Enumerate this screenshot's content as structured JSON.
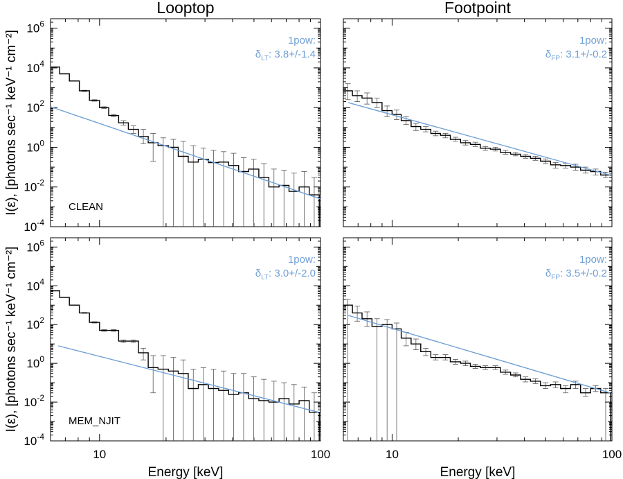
{
  "chart_data": [
    {
      "id": "lt_clean",
      "type": "step",
      "column_title": "Looptop",
      "ylabel": "I(ε), [photons sec⁻¹ keV⁻¹ cm⁻²]",
      "xlabel": "",
      "xscale": "log",
      "yscale": "log",
      "xlim": [
        6,
        100
      ],
      "ylim": [
        0.0001,
        3000000
      ],
      "series_label": "CLEAN",
      "fit_label": "1pow:",
      "delta_symbol": "δ",
      "delta_sub": "LT",
      "delta_value": ": 3.8+/-1.4",
      "fit": {
        "x": [
          6,
          100
        ],
        "y": [
          110,
          0.0025
        ]
      },
      "bins": [
        {
          "x0": 6.0,
          "x1": 6.6,
          "y": 11000,
          "lo": 11000,
          "hi": 11000
        },
        {
          "x0": 6.6,
          "x1": 7.3,
          "y": 5000,
          "lo": 5000,
          "hi": 5000
        },
        {
          "x0": 7.3,
          "x1": 8.1,
          "y": 2200,
          "lo": 2200,
          "hi": 2200
        },
        {
          "x0": 8.1,
          "x1": 9.0,
          "y": 700,
          "lo": 650,
          "hi": 750
        },
        {
          "x0": 9.0,
          "x1": 10.0,
          "y": 230,
          "lo": 210,
          "hi": 250
        },
        {
          "x0": 10.0,
          "x1": 11.0,
          "y": 100,
          "lo": 90,
          "hi": 110
        },
        {
          "x0": 11.0,
          "x1": 12.2,
          "y": 40,
          "lo": 35,
          "hi": 45
        },
        {
          "x0": 12.2,
          "x1": 13.5,
          "y": 17,
          "lo": 13,
          "hi": 22
        },
        {
          "x0": 13.5,
          "x1": 15.0,
          "y": 8,
          "lo": 5,
          "hi": 12
        },
        {
          "x0": 15.0,
          "x1": 16.6,
          "y": 3.5,
          "lo": 1.5,
          "hi": 8
        },
        {
          "x0": 16.6,
          "x1": 18.4,
          "y": 1.7,
          "lo": 0.2,
          "hi": 5
        },
        {
          "x0": 18.4,
          "x1": 20.5,
          "y": 1.2,
          "lo": 0.0001,
          "hi": 3
        },
        {
          "x0": 20.5,
          "x1": 22.7,
          "y": 1.0,
          "lo": 0.0001,
          "hi": 2.5
        },
        {
          "x0": 22.7,
          "x1": 25.2,
          "y": 0.35,
          "lo": 0.0001,
          "hi": 2
        },
        {
          "x0": 25.2,
          "x1": 28.0,
          "y": 0.18,
          "lo": 0.0001,
          "hi": 1.2
        },
        {
          "x0": 28.0,
          "x1": 31.1,
          "y": 0.25,
          "lo": 0.0001,
          "hi": 0.9
        },
        {
          "x0": 31.1,
          "x1": 34.6,
          "y": 0.17,
          "lo": 0.0001,
          "hi": 0.7
        },
        {
          "x0": 34.6,
          "x1": 38.4,
          "y": 0.18,
          "lo": 0.0001,
          "hi": 0.6
        },
        {
          "x0": 38.4,
          "x1": 42.6,
          "y": 0.12,
          "lo": 0.0001,
          "hi": 0.5
        },
        {
          "x0": 42.6,
          "x1": 47.3,
          "y": 0.06,
          "lo": 0.0001,
          "hi": 0.3
        },
        {
          "x0": 47.3,
          "x1": 52.6,
          "y": 0.08,
          "lo": 0.0001,
          "hi": 0.25
        },
        {
          "x0": 52.6,
          "x1": 58.4,
          "y": 0.03,
          "lo": 0.0001,
          "hi": 0.15
        },
        {
          "x0": 58.4,
          "x1": 64.9,
          "y": 0.01,
          "lo": 0.0001,
          "hi": 0.08
        },
        {
          "x0": 64.9,
          "x1": 72.0,
          "y": 0.012,
          "lo": 0.0001,
          "hi": 0.07
        },
        {
          "x0": 72.0,
          "x1": 80.0,
          "y": 0.006,
          "lo": 0.0001,
          "hi": 0.05
        },
        {
          "x0": 80.0,
          "x1": 88.9,
          "y": 0.01,
          "lo": 0.0001,
          "hi": 0.06
        },
        {
          "x0": 88.9,
          "x1": 98.7,
          "y": 0.004,
          "lo": 0.0001,
          "hi": 0.03
        }
      ]
    },
    {
      "id": "fp_clean",
      "type": "step",
      "column_title": "Footpoint",
      "ylabel": "",
      "xlabel": "",
      "xscale": "log",
      "yscale": "log",
      "xlim": [
        6,
        100
      ],
      "ylim": [
        0.0001,
        3000000
      ],
      "series_label": "",
      "fit_label": "1pow:",
      "delta_symbol": "δ",
      "delta_sub": "FP",
      "delta_value": ": 3.1+/-0.2",
      "fit": {
        "x": [
          6.3,
          98
        ],
        "y": [
          180,
          0.04
        ]
      },
      "bins": [
        {
          "x0": 6.0,
          "x1": 6.6,
          "y": 700,
          "lo": 250,
          "hi": 1600
        },
        {
          "x0": 6.6,
          "x1": 7.3,
          "y": 400,
          "lo": 200,
          "hi": 700
        },
        {
          "x0": 7.3,
          "x1": 8.1,
          "y": 300,
          "lo": 150,
          "hi": 550
        },
        {
          "x0": 8.1,
          "x1": 9.0,
          "y": 180,
          "lo": 100,
          "hi": 300
        },
        {
          "x0": 9.0,
          "x1": 10.0,
          "y": 70,
          "lo": 35,
          "hi": 120
        },
        {
          "x0": 10.0,
          "x1": 11.0,
          "y": 45,
          "lo": 25,
          "hi": 75
        },
        {
          "x0": 11.0,
          "x1": 12.2,
          "y": 22,
          "lo": 14,
          "hi": 35
        },
        {
          "x0": 12.2,
          "x1": 13.5,
          "y": 11,
          "lo": 7,
          "hi": 16
        },
        {
          "x0": 13.5,
          "x1": 15.0,
          "y": 8,
          "lo": 6,
          "hi": 11
        },
        {
          "x0": 15.0,
          "x1": 16.6,
          "y": 5,
          "lo": 3.8,
          "hi": 6.5
        },
        {
          "x0": 16.6,
          "x1": 18.4,
          "y": 4,
          "lo": 3,
          "hi": 5
        },
        {
          "x0": 18.4,
          "x1": 20.5,
          "y": 2.5,
          "lo": 2,
          "hi": 3.2
        },
        {
          "x0": 20.5,
          "x1": 22.7,
          "y": 1.7,
          "lo": 1.3,
          "hi": 2.2
        },
        {
          "x0": 22.7,
          "x1": 25.2,
          "y": 1.4,
          "lo": 1.1,
          "hi": 1.8
        },
        {
          "x0": 25.2,
          "x1": 28.0,
          "y": 0.9,
          "lo": 0.7,
          "hi": 1.1
        },
        {
          "x0": 28.0,
          "x1": 31.1,
          "y": 0.8,
          "lo": 0.65,
          "hi": 1.0
        },
        {
          "x0": 31.1,
          "x1": 34.6,
          "y": 0.55,
          "lo": 0.45,
          "hi": 0.7
        },
        {
          "x0": 34.6,
          "x1": 38.4,
          "y": 0.45,
          "lo": 0.37,
          "hi": 0.55
        },
        {
          "x0": 38.4,
          "x1": 42.6,
          "y": 0.35,
          "lo": 0.28,
          "hi": 0.43
        },
        {
          "x0": 42.6,
          "x1": 47.3,
          "y": 0.28,
          "lo": 0.22,
          "hi": 0.35
        },
        {
          "x0": 47.3,
          "x1": 52.6,
          "y": 0.2,
          "lo": 0.15,
          "hi": 0.26
        },
        {
          "x0": 52.6,
          "x1": 58.4,
          "y": 0.13,
          "lo": 0.09,
          "hi": 0.17
        },
        {
          "x0": 58.4,
          "x1": 64.9,
          "y": 0.12,
          "lo": 0.09,
          "hi": 0.16
        },
        {
          "x0": 64.9,
          "x1": 72.0,
          "y": 0.1,
          "lo": 0.07,
          "hi": 0.14
        },
        {
          "x0": 72.0,
          "x1": 80.0,
          "y": 0.07,
          "lo": 0.05,
          "hi": 0.1
        },
        {
          "x0": 80.0,
          "x1": 88.9,
          "y": 0.06,
          "lo": 0.04,
          "hi": 0.08
        },
        {
          "x0": 88.9,
          "x1": 98.7,
          "y": 0.04,
          "lo": 0.03,
          "hi": 0.055
        }
      ]
    },
    {
      "id": "lt_mem",
      "type": "step",
      "column_title": "",
      "ylabel": "I(ε), [photons sec⁻¹ keV⁻¹ cm⁻²]",
      "xlabel": "Energy [keV]",
      "xscale": "log",
      "yscale": "log",
      "xlim": [
        6,
        100
      ],
      "ylim": [
        0.0001,
        3000000
      ],
      "series_label": "MEM_NJIT",
      "fit_label": "1pow:",
      "delta_symbol": "δ",
      "delta_sub": "LT",
      "delta_value": ": 3.0+/-2.0",
      "fit": {
        "x": [
          6.5,
          98
        ],
        "y": [
          8,
          0.003
        ]
      },
      "bins": [
        {
          "x0": 6.0,
          "x1": 6.6,
          "y": 5500,
          "lo": 5500,
          "hi": 5500
        },
        {
          "x0": 6.6,
          "x1": 7.3,
          "y": 2500,
          "lo": 2500,
          "hi": 2500
        },
        {
          "x0": 7.3,
          "x1": 8.1,
          "y": 1000,
          "lo": 1000,
          "hi": 1000
        },
        {
          "x0": 8.1,
          "x1": 9.0,
          "y": 400,
          "lo": 380,
          "hi": 420
        },
        {
          "x0": 9.0,
          "x1": 10.0,
          "y": 130,
          "lo": 120,
          "hi": 140
        },
        {
          "x0": 10.0,
          "x1": 11.0,
          "y": 50,
          "lo": 45,
          "hi": 55
        },
        {
          "x0": 11.0,
          "x1": 12.2,
          "y": 50,
          "lo": 45,
          "hi": 55
        },
        {
          "x0": 12.2,
          "x1": 13.5,
          "y": 14,
          "lo": 12,
          "hi": 16
        },
        {
          "x0": 13.5,
          "x1": 15.0,
          "y": 14,
          "lo": 12,
          "hi": 16
        },
        {
          "x0": 15.0,
          "x1": 16.6,
          "y": 3.5,
          "lo": 1.5,
          "hi": 6
        },
        {
          "x0": 16.6,
          "x1": 18.4,
          "y": 0.6,
          "lo": 0.03,
          "hi": 2.5
        },
        {
          "x0": 18.4,
          "x1": 20.5,
          "y": 0.5,
          "lo": 0.0001,
          "hi": 2.5
        },
        {
          "x0": 20.5,
          "x1": 22.7,
          "y": 0.4,
          "lo": 0.0001,
          "hi": 2
        },
        {
          "x0": 22.7,
          "x1": 25.2,
          "y": 0.3,
          "lo": 0.0001,
          "hi": 1.5
        },
        {
          "x0": 25.2,
          "x1": 28.0,
          "y": 0.05,
          "lo": 0.0001,
          "hi": 0.5
        },
        {
          "x0": 28.0,
          "x1": 31.1,
          "y": 0.08,
          "lo": 0.0001,
          "hi": 0.6
        },
        {
          "x0": 31.1,
          "x1": 34.6,
          "y": 0.05,
          "lo": 0.0001,
          "hi": 0.5
        },
        {
          "x0": 34.6,
          "x1": 38.4,
          "y": 0.04,
          "lo": 0.0001,
          "hi": 0.4
        },
        {
          "x0": 38.4,
          "x1": 42.6,
          "y": 0.025,
          "lo": 0.0001,
          "hi": 0.3
        },
        {
          "x0": 42.6,
          "x1": 47.3,
          "y": 0.03,
          "lo": 0.0001,
          "hi": 0.3
        },
        {
          "x0": 47.3,
          "x1": 52.6,
          "y": 0.015,
          "lo": 0.0001,
          "hi": 0.2
        },
        {
          "x0": 52.6,
          "x1": 58.4,
          "y": 0.012,
          "lo": 0.0001,
          "hi": 0.15
        },
        {
          "x0": 58.4,
          "x1": 64.9,
          "y": 0.01,
          "lo": 0.0001,
          "hi": 0.12
        },
        {
          "x0": 64.9,
          "x1": 72.0,
          "y": 0.015,
          "lo": 0.0001,
          "hi": 0.1
        },
        {
          "x0": 72.0,
          "x1": 80.0,
          "y": 0.008,
          "lo": 0.0001,
          "hi": 0.08
        },
        {
          "x0": 80.0,
          "x1": 88.9,
          "y": 0.012,
          "lo": 0.0001,
          "hi": 0.06
        },
        {
          "x0": 88.9,
          "x1": 98.7,
          "y": 0.003,
          "lo": 0.0001,
          "hi": 0.03
        }
      ]
    },
    {
      "id": "fp_mem",
      "type": "step",
      "column_title": "",
      "ylabel": "",
      "xlabel": "Energy [keV]",
      "xscale": "log",
      "yscale": "log",
      "xlim": [
        6,
        100
      ],
      "ylim": [
        0.0001,
        3000000
      ],
      "series_label": "",
      "fit_label": "1pow:",
      "delta_symbol": "δ",
      "delta_sub": "FP",
      "delta_value": ": 3.5+/-0.2",
      "fit": {
        "x": [
          6.3,
          98
        ],
        "y": [
          300,
          0.03
        ]
      },
      "bins": [
        {
          "x0": 6.0,
          "x1": 6.6,
          "y": 1000,
          "lo": 0.0001,
          "hi": 2000
        },
        {
          "x0": 6.6,
          "x1": 7.3,
          "y": 400,
          "lo": 150,
          "hi": 900
        },
        {
          "x0": 7.3,
          "x1": 8.1,
          "y": 200,
          "lo": 80,
          "hi": 450
        },
        {
          "x0": 8.1,
          "x1": 9.0,
          "y": 80,
          "lo": 0.0001,
          "hi": 200
        },
        {
          "x0": 9.0,
          "x1": 10.0,
          "y": 100,
          "lo": 0.0001,
          "hi": 180
        },
        {
          "x0": 10.0,
          "x1": 11.0,
          "y": 60,
          "lo": 0.0001,
          "hi": 120
        },
        {
          "x0": 11.0,
          "x1": 12.2,
          "y": 20,
          "lo": 8,
          "hi": 40
        },
        {
          "x0": 12.2,
          "x1": 13.5,
          "y": 10,
          "lo": 5,
          "hi": 18
        },
        {
          "x0": 13.5,
          "x1": 15.0,
          "y": 4,
          "lo": 2.5,
          "hi": 6
        },
        {
          "x0": 15.0,
          "x1": 16.6,
          "y": 2,
          "lo": 1.5,
          "hi": 2.8
        },
        {
          "x0": 16.6,
          "x1": 18.4,
          "y": 2,
          "lo": 1.5,
          "hi": 2.8
        },
        {
          "x0": 18.4,
          "x1": 20.5,
          "y": 1.2,
          "lo": 0.9,
          "hi": 1.6
        },
        {
          "x0": 20.5,
          "x1": 22.7,
          "y": 1.0,
          "lo": 0.75,
          "hi": 1.3
        },
        {
          "x0": 22.7,
          "x1": 25.2,
          "y": 0.7,
          "lo": 0.55,
          "hi": 0.9
        },
        {
          "x0": 25.2,
          "x1": 28.0,
          "y": 0.6,
          "lo": 0.48,
          "hi": 0.75
        },
        {
          "x0": 28.0,
          "x1": 31.1,
          "y": 0.6,
          "lo": 0.48,
          "hi": 0.75
        },
        {
          "x0": 31.1,
          "x1": 34.6,
          "y": 0.35,
          "lo": 0.27,
          "hi": 0.45
        },
        {
          "x0": 34.6,
          "x1": 38.4,
          "y": 0.25,
          "lo": 0.2,
          "hi": 0.32
        },
        {
          "x0": 38.4,
          "x1": 42.6,
          "y": 0.15,
          "lo": 0.11,
          "hi": 0.2
        },
        {
          "x0": 42.6,
          "x1": 47.3,
          "y": 0.12,
          "lo": 0.09,
          "hi": 0.16
        },
        {
          "x0": 47.3,
          "x1": 52.6,
          "y": 0.07,
          "lo": 0.05,
          "hi": 0.1
        },
        {
          "x0": 52.6,
          "x1": 58.4,
          "y": 0.08,
          "lo": 0.055,
          "hi": 0.11
        },
        {
          "x0": 58.4,
          "x1": 64.9,
          "y": 0.05,
          "lo": 0.03,
          "hi": 0.07
        },
        {
          "x0": 64.9,
          "x1": 72.0,
          "y": 0.08,
          "lo": 0.05,
          "hi": 0.12
        },
        {
          "x0": 72.0,
          "x1": 80.0,
          "y": 0.03,
          "lo": 0.02,
          "hi": 0.05
        },
        {
          "x0": 80.0,
          "x1": 88.9,
          "y": 0.05,
          "lo": 0.035,
          "hi": 0.07
        },
        {
          "x0": 88.9,
          "x1": 98.7,
          "y": 0.03,
          "lo": 0.0001,
          "hi": 0.05
        }
      ]
    }
  ],
  "axes": {
    "y_ticks": [
      {
        "value": 1000000,
        "base": "10",
        "exp": "6"
      },
      {
        "value": 10000,
        "base": "10",
        "exp": "4"
      },
      {
        "value": 100,
        "base": "10",
        "exp": "2"
      },
      {
        "value": 1,
        "base": "10",
        "exp": "0"
      },
      {
        "value": 0.01,
        "base": "10",
        "exp": "-2"
      },
      {
        "value": 0.0001,
        "base": "10",
        "exp": "-4"
      }
    ],
    "x_ticks": [
      {
        "value": 10,
        "label": "10"
      },
      {
        "value": 100,
        "label": "100"
      }
    ]
  },
  "colors": {
    "fit": "#6fa0d6",
    "data": "#000000",
    "errorbar": "#555555"
  }
}
